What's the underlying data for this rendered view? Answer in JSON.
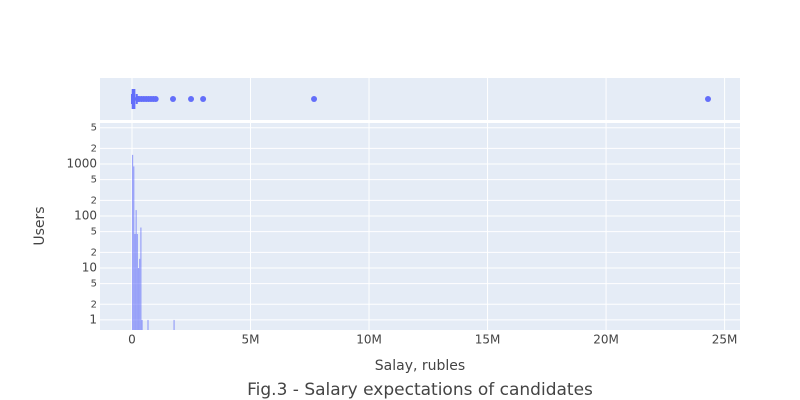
{
  "chart_data": {
    "type": "histogram",
    "title": "Fig.3 - Salary expectations of candidates",
    "x_label": "Salay, rubles",
    "y_label": "Users",
    "bins": [
      0,
      50000,
      100000,
      150000,
      200000,
      250000,
      300000,
      350000,
      400000,
      450000,
      500000,
      550000,
      600000,
      650000,
      700000,
      750000,
      800000,
      850000,
      900000,
      950000,
      1000000,
      1050000,
      1100000,
      1150000,
      1200000,
      1250000,
      1300000,
      1350000,
      1400000,
      1450000,
      1500000,
      1550000,
      1600000,
      1650000,
      1700000,
      1750000,
      1800000
    ],
    "values": [
      1500,
      900,
      45,
      130,
      45,
      10,
      15,
      60,
      1,
      0,
      0,
      0,
      0,
      1,
      0,
      0,
      0,
      0,
      0,
      0,
      0,
      0,
      0,
      0,
      0,
      0,
      0,
      0,
      0,
      0,
      0,
      0,
      0,
      0,
      0,
      1
    ],
    "color": "#636efa",
    "opacity": 0.6,
    "xlim": [
      -1350000,
      25650000
    ],
    "xticks": [
      0,
      {
        "value": 5000000,
        "label": "5M"
      },
      {
        "value": 10000000,
        "label": "10M"
      },
      {
        "value": 15000000,
        "label": "15M"
      },
      {
        "value": 20000000,
        "label": "20M"
      },
      {
        "value": 25000000,
        "label": "25M"
      }
    ],
    "ylim": [
      0.64,
      6160
    ],
    "log_y": true,
    "yticks": [
      1,
      {
        "value": 2,
        "label": "2"
      },
      {
        "value": 5,
        "label": "5"
      },
      10,
      {
        "value": 20,
        "label": "2"
      },
      {
        "value": 50,
        "label": "5"
      },
      100,
      {
        "value": 200,
        "label": "2"
      },
      {
        "value": 500,
        "label": "5"
      },
      1000,
      {
        "value": 2000,
        "label": "2"
      },
      {
        "value": 5000,
        "label": "5"
      }
    ],
    "grid": true,
    "marginal": {
      "type": "box",
      "min": 0,
      "q1": 30000,
      "median": 60000,
      "q3": 100000,
      "max": 200000,
      "outliers": [
        250000,
        300000,
        400000,
        500000,
        600000,
        700000,
        800000,
        900000,
        1000000,
        1730000,
        2490000,
        3000000,
        7680000,
        24300000
      ]
    }
  }
}
